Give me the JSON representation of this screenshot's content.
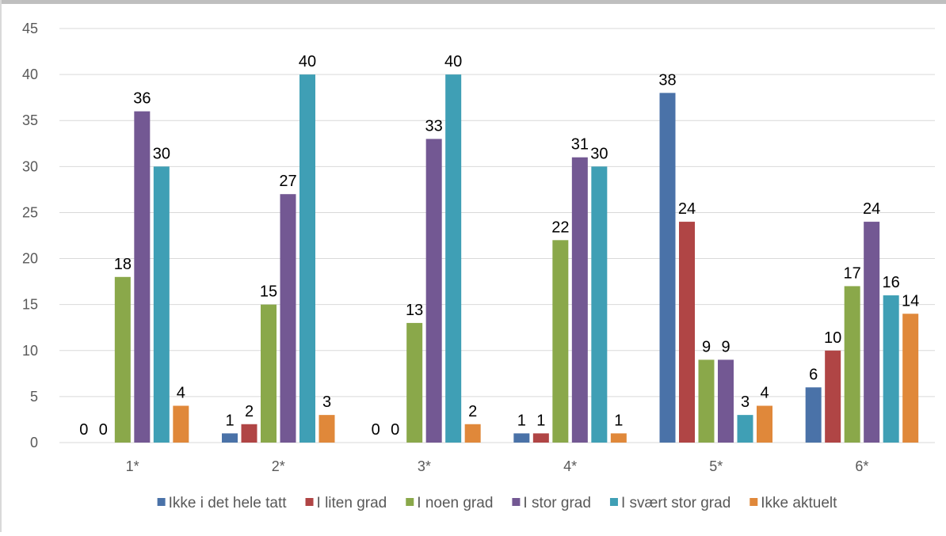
{
  "chart_data": {
    "type": "bar",
    "categories": [
      "1*",
      "2*",
      "3*",
      "4*",
      "5*",
      "6*"
    ],
    "series": [
      {
        "name": "Ikke i det hele tatt",
        "color": "#4a72a8",
        "values": [
          0,
          1,
          0,
          1,
          38,
          6
        ]
      },
      {
        "name": "I liten grad",
        "color": "#b04545",
        "values": [
          0,
          2,
          0,
          1,
          24,
          10
        ]
      },
      {
        "name": "I noen grad",
        "color": "#8aa84a",
        "values": [
          18,
          15,
          13,
          22,
          9,
          17
        ]
      },
      {
        "name": "I stor grad",
        "color": "#735893",
        "values": [
          36,
          27,
          33,
          31,
          9,
          24
        ]
      },
      {
        "name": "I svært stor grad",
        "color": "#3f9fb5",
        "values": [
          30,
          40,
          40,
          30,
          3,
          16
        ]
      },
      {
        "name": "Ikke aktuelt",
        "color": "#e0883a",
        "values": [
          4,
          3,
          2,
          1,
          4,
          14
        ]
      }
    ],
    "ylim": [
      0,
      45
    ],
    "yticks": [
      0,
      5,
      10,
      15,
      20,
      25,
      30,
      35,
      40,
      45
    ],
    "grid": true,
    "legend": "bottom",
    "data_labels": true
  }
}
